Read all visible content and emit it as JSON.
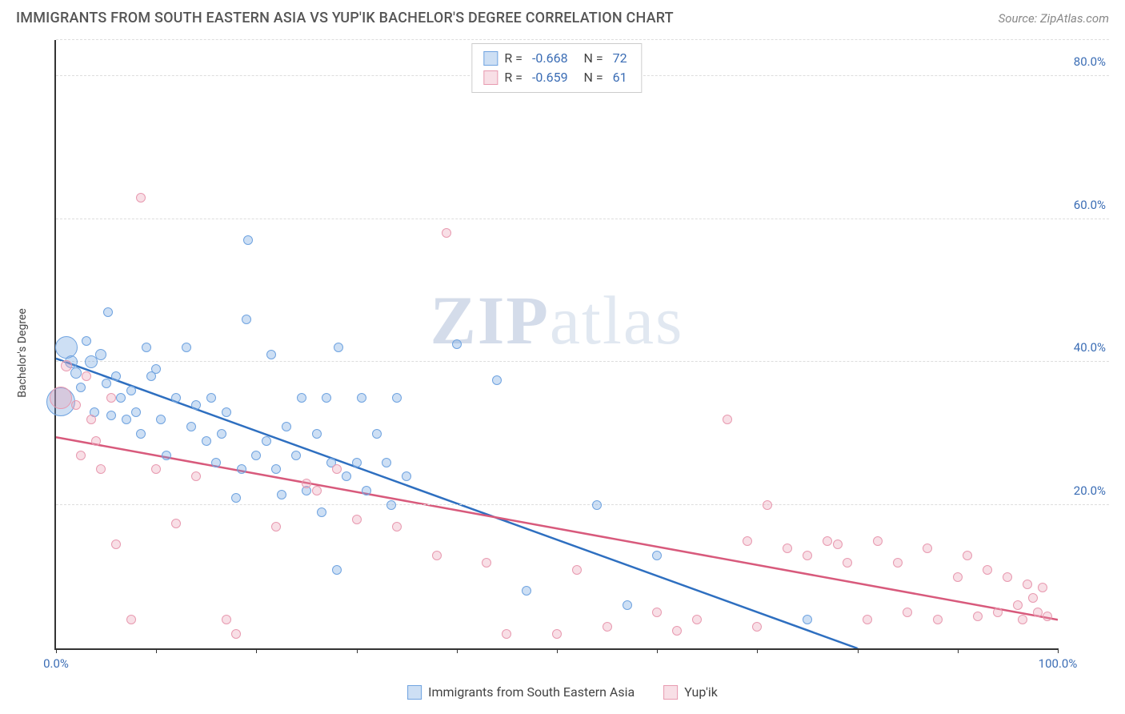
{
  "header": {
    "title": "IMMIGRANTS FROM SOUTH EASTERN ASIA VS YUP'IK BACHELOR'S DEGREE CORRELATION CHART",
    "source": "Source: ZipAtlas.com"
  },
  "chart": {
    "type": "scatter",
    "ylabel": "Bachelor's Degree",
    "xlim": [
      0,
      100
    ],
    "ylim": [
      0,
      85
    ],
    "xtick_positions": [
      0,
      10,
      20,
      30,
      40,
      50,
      60,
      70,
      80,
      90,
      100
    ],
    "xtick_labels": {
      "0": "0.0%",
      "100": "100.0%"
    },
    "ytick_positions": [
      20,
      40,
      60,
      80
    ],
    "ytick_labels": {
      "20": "20.0%",
      "40": "40.0%",
      "60": "60.0%",
      "80": "80.0%"
    },
    "background_color": "#ffffff",
    "grid_color": "#dddddd",
    "axis_color": "#333333",
    "tick_label_color": "#3b6db5",
    "ylabel_color": "#444444",
    "watermark_text": "ZIPatlas",
    "series": [
      {
        "name": "Immigrants from South Eastern Asia",
        "color": "#6fa3e0",
        "fill_color": "rgba(111,163,224,0.35)",
        "line_color": "#2e6fc0",
        "R": "-0.668",
        "N": "72",
        "regression": {
          "x1": 0,
          "y1": 40.5,
          "x2": 80,
          "y2": 0
        },
        "regression_dashed": {
          "x1": 80,
          "y1": 0,
          "x2": 85,
          "y2": -2
        },
        "points": [
          {
            "x": 0.5,
            "y": 34.5,
            "r": 18
          },
          {
            "x": 1,
            "y": 42,
            "r": 14
          },
          {
            "x": 1.5,
            "y": 40,
            "r": 8
          },
          {
            "x": 2,
            "y": 38.5,
            "r": 7
          },
          {
            "x": 2.5,
            "y": 36.5,
            "r": 6
          },
          {
            "x": 3,
            "y": 43,
            "r": 6
          },
          {
            "x": 3.5,
            "y": 40,
            "r": 8
          },
          {
            "x": 3.8,
            "y": 33,
            "r": 6
          },
          {
            "x": 4.5,
            "y": 41,
            "r": 7
          },
          {
            "x": 5,
            "y": 37,
            "r": 6
          },
          {
            "x": 5.2,
            "y": 47,
            "r": 6
          },
          {
            "x": 5.5,
            "y": 32.5,
            "r": 6
          },
          {
            "x": 6,
            "y": 38,
            "r": 6
          },
          {
            "x": 6.5,
            "y": 35,
            "r": 6
          },
          {
            "x": 7,
            "y": 32,
            "r": 6
          },
          {
            "x": 7.5,
            "y": 36,
            "r": 6
          },
          {
            "x": 8,
            "y": 33,
            "r": 6
          },
          {
            "x": 8.5,
            "y": 30,
            "r": 6
          },
          {
            "x": 9,
            "y": 42,
            "r": 6
          },
          {
            "x": 9.5,
            "y": 38,
            "r": 6
          },
          {
            "x": 10,
            "y": 39,
            "r": 6
          },
          {
            "x": 10.5,
            "y": 32,
            "r": 6
          },
          {
            "x": 11,
            "y": 27,
            "r": 6
          },
          {
            "x": 12,
            "y": 35,
            "r": 6
          },
          {
            "x": 13,
            "y": 42,
            "r": 6
          },
          {
            "x": 13.5,
            "y": 31,
            "r": 6
          },
          {
            "x": 14,
            "y": 34,
            "r": 6
          },
          {
            "x": 15,
            "y": 29,
            "r": 6
          },
          {
            "x": 15.5,
            "y": 35,
            "r": 6
          },
          {
            "x": 16,
            "y": 26,
            "r": 6
          },
          {
            "x": 16.5,
            "y": 30,
            "r": 6
          },
          {
            "x": 17,
            "y": 33,
            "r": 6
          },
          {
            "x": 18,
            "y": 21,
            "r": 6
          },
          {
            "x": 18.5,
            "y": 25,
            "r": 6
          },
          {
            "x": 19,
            "y": 46,
            "r": 6
          },
          {
            "x": 19.2,
            "y": 57,
            "r": 6
          },
          {
            "x": 20,
            "y": 27,
            "r": 6
          },
          {
            "x": 21,
            "y": 29,
            "r": 6
          },
          {
            "x": 21.5,
            "y": 41,
            "r": 6
          },
          {
            "x": 22,
            "y": 25,
            "r": 6
          },
          {
            "x": 22.5,
            "y": 21.5,
            "r": 6
          },
          {
            "x": 23,
            "y": 31,
            "r": 6
          },
          {
            "x": 24,
            "y": 27,
            "r": 6
          },
          {
            "x": 24.5,
            "y": 35,
            "r": 6
          },
          {
            "x": 25,
            "y": 22,
            "r": 6
          },
          {
            "x": 26,
            "y": 30,
            "r": 6
          },
          {
            "x": 26.5,
            "y": 19,
            "r": 6
          },
          {
            "x": 27,
            "y": 35,
            "r": 6
          },
          {
            "x": 27.5,
            "y": 26,
            "r": 6
          },
          {
            "x": 28,
            "y": 11,
            "r": 6
          },
          {
            "x": 28.2,
            "y": 42,
            "r": 6
          },
          {
            "x": 29,
            "y": 24,
            "r": 6
          },
          {
            "x": 30,
            "y": 26,
            "r": 6
          },
          {
            "x": 30.5,
            "y": 35,
            "r": 6
          },
          {
            "x": 31,
            "y": 22,
            "r": 6
          },
          {
            "x": 32,
            "y": 30,
            "r": 6
          },
          {
            "x": 33,
            "y": 26,
            "r": 6
          },
          {
            "x": 33.5,
            "y": 20,
            "r": 6
          },
          {
            "x": 34,
            "y": 35,
            "r": 6
          },
          {
            "x": 35,
            "y": 24,
            "r": 6
          },
          {
            "x": 40,
            "y": 42.5,
            "r": 6
          },
          {
            "x": 44,
            "y": 37.5,
            "r": 6
          },
          {
            "x": 47,
            "y": 8,
            "r": 6
          },
          {
            "x": 54,
            "y": 20,
            "r": 6
          },
          {
            "x": 57,
            "y": 6,
            "r": 6
          },
          {
            "x": 60,
            "y": 13,
            "r": 6
          },
          {
            "x": 75,
            "y": 4,
            "r": 6
          }
        ]
      },
      {
        "name": "Yup'ik",
        "color": "#e89ab0",
        "fill_color": "rgba(232,154,176,0.32)",
        "line_color": "#d85a7c",
        "R": "-0.659",
        "N": "61",
        "regression": {
          "x1": 0,
          "y1": 29.5,
          "x2": 100,
          "y2": 4
        },
        "points": [
          {
            "x": 0.5,
            "y": 35,
            "r": 14
          },
          {
            "x": 1,
            "y": 39.5,
            "r": 7
          },
          {
            "x": 2,
            "y": 34,
            "r": 6
          },
          {
            "x": 2.5,
            "y": 27,
            "r": 6
          },
          {
            "x": 3,
            "y": 38,
            "r": 6
          },
          {
            "x": 3.5,
            "y": 32,
            "r": 6
          },
          {
            "x": 4,
            "y": 29,
            "r": 6
          },
          {
            "x": 4.5,
            "y": 25,
            "r": 6
          },
          {
            "x": 5.5,
            "y": 35,
            "r": 6
          },
          {
            "x": 6,
            "y": 14.5,
            "r": 6
          },
          {
            "x": 7.5,
            "y": 4,
            "r": 6
          },
          {
            "x": 8.5,
            "y": 63,
            "r": 6
          },
          {
            "x": 10,
            "y": 25,
            "r": 6
          },
          {
            "x": 12,
            "y": 17.5,
            "r": 6
          },
          {
            "x": 14,
            "y": 24,
            "r": 6
          },
          {
            "x": 17,
            "y": 4,
            "r": 6
          },
          {
            "x": 18,
            "y": 2,
            "r": 6
          },
          {
            "x": 22,
            "y": 17,
            "r": 6
          },
          {
            "x": 25,
            "y": 23,
            "r": 6
          },
          {
            "x": 26,
            "y": 22,
            "r": 6
          },
          {
            "x": 28,
            "y": 25,
            "r": 6
          },
          {
            "x": 30,
            "y": 18,
            "r": 6
          },
          {
            "x": 34,
            "y": 17,
            "r": 6
          },
          {
            "x": 38,
            "y": 13,
            "r": 6
          },
          {
            "x": 39,
            "y": 58,
            "r": 6
          },
          {
            "x": 43,
            "y": 12,
            "r": 6
          },
          {
            "x": 45,
            "y": 2,
            "r": 6
          },
          {
            "x": 50,
            "y": 2,
            "r": 6
          },
          {
            "x": 52,
            "y": 11,
            "r": 6
          },
          {
            "x": 55,
            "y": 3,
            "r": 6
          },
          {
            "x": 60,
            "y": 5,
            "r": 6
          },
          {
            "x": 62,
            "y": 2.5,
            "r": 6
          },
          {
            "x": 64,
            "y": 4,
            "r": 6
          },
          {
            "x": 67,
            "y": 32,
            "r": 6
          },
          {
            "x": 69,
            "y": 15,
            "r": 6
          },
          {
            "x": 70,
            "y": 3,
            "r": 6
          },
          {
            "x": 71,
            "y": 20,
            "r": 6
          },
          {
            "x": 73,
            "y": 14,
            "r": 6
          },
          {
            "x": 75,
            "y": 13,
            "r": 6
          },
          {
            "x": 77,
            "y": 15,
            "r": 6
          },
          {
            "x": 78,
            "y": 14.5,
            "r": 6
          },
          {
            "x": 79,
            "y": 12,
            "r": 6
          },
          {
            "x": 81,
            "y": 4,
            "r": 6
          },
          {
            "x": 82,
            "y": 15,
            "r": 6
          },
          {
            "x": 84,
            "y": 12,
            "r": 6
          },
          {
            "x": 85,
            "y": 5,
            "r": 6
          },
          {
            "x": 87,
            "y": 14,
            "r": 6
          },
          {
            "x": 88,
            "y": 4,
            "r": 6
          },
          {
            "x": 90,
            "y": 10,
            "r": 6
          },
          {
            "x": 91,
            "y": 13,
            "r": 6
          },
          {
            "x": 92,
            "y": 4.5,
            "r": 6
          },
          {
            "x": 93,
            "y": 11,
            "r": 6
          },
          {
            "x": 94,
            "y": 5,
            "r": 6
          },
          {
            "x": 95,
            "y": 10,
            "r": 6
          },
          {
            "x": 96,
            "y": 6,
            "r": 6
          },
          {
            "x": 96.5,
            "y": 4,
            "r": 6
          },
          {
            "x": 97,
            "y": 9,
            "r": 6
          },
          {
            "x": 97.5,
            "y": 7,
            "r": 6
          },
          {
            "x": 98,
            "y": 5,
            "r": 6
          },
          {
            "x": 98.5,
            "y": 8.5,
            "r": 6
          },
          {
            "x": 99,
            "y": 4.5,
            "r": 6
          }
        ]
      }
    ]
  }
}
